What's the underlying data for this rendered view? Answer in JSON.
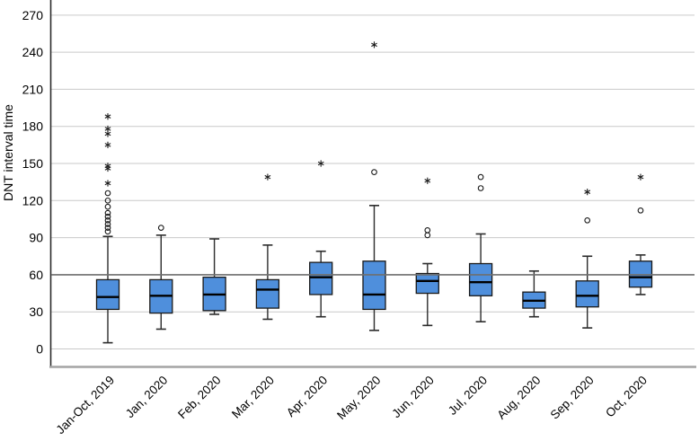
{
  "chart_data": {
    "type": "boxplot",
    "title": "",
    "ylabel": "DNT interval time",
    "xlabel": "",
    "yticks": [
      0,
      30,
      60,
      90,
      120,
      150,
      180,
      210,
      240,
      270
    ],
    "ylim": [
      -14,
      279
    ],
    "grid": "horizontal",
    "legend": "none",
    "reference_line": 60,
    "categories": [
      "Jan-Oct, 2019",
      "Jan, 2020",
      "Feb, 2020",
      "Mar, 2020",
      "Apr, 2020",
      "May, 2020",
      "Jun, 2020",
      "Jul, 2020",
      "Aug, 2020",
      "Sep, 2020",
      "Oct, 2020"
    ],
    "boxes": [
      {
        "category": "Jan-Oct, 2019",
        "whisker_low": 5,
        "q1": 32,
        "median": 42,
        "q3": 56,
        "whisker_high": 91,
        "outliers_circle": [
          95,
          98,
          101,
          104,
          107,
          110,
          115,
          120,
          126
        ],
        "outliers_star": [
          134,
          146,
          148,
          165,
          174,
          178,
          188
        ]
      },
      {
        "category": "Jan, 2020",
        "whisker_low": 16,
        "q1": 29,
        "median": 43,
        "q3": 56,
        "whisker_high": 92,
        "outliers_circle": [
          98
        ],
        "outliers_star": []
      },
      {
        "category": "Feb, 2020",
        "whisker_low": 28,
        "q1": 31,
        "median": 44,
        "q3": 58,
        "whisker_high": 89,
        "outliers_circle": [],
        "outliers_star": []
      },
      {
        "category": "Mar, 2020",
        "whisker_low": 24,
        "q1": 33,
        "median": 48,
        "q3": 56,
        "whisker_high": 84,
        "outliers_circle": [],
        "outliers_star": [
          139
        ]
      },
      {
        "category": "Apr, 2020",
        "whisker_low": 26,
        "q1": 44,
        "median": 58,
        "q3": 70,
        "whisker_high": 79,
        "outliers_circle": [],
        "outliers_star": [
          150
        ]
      },
      {
        "category": "May, 2020",
        "whisker_low": 15,
        "q1": 32,
        "median": 44,
        "q3": 71,
        "whisker_high": 116,
        "outliers_circle": [
          143
        ],
        "outliers_star": [
          246
        ]
      },
      {
        "category": "Jun, 2020",
        "whisker_low": 19,
        "q1": 45,
        "median": 55,
        "q3": 61,
        "whisker_high": 69,
        "outliers_circle": [
          92,
          96
        ],
        "outliers_star": [
          136
        ]
      },
      {
        "category": "Jul, 2020",
        "whisker_low": 22,
        "q1": 43,
        "median": 54,
        "q3": 69,
        "whisker_high": 93,
        "outliers_circle": [
          130,
          139
        ],
        "outliers_star": []
      },
      {
        "category": "Aug, 2020",
        "whisker_low": 26,
        "q1": 33,
        "median": 39,
        "q3": 46,
        "whisker_high": 63,
        "outliers_circle": [],
        "outliers_star": []
      },
      {
        "category": "Sep, 2020",
        "whisker_low": 17,
        "q1": 34,
        "median": 43,
        "q3": 55,
        "whisker_high": 75,
        "outliers_circle": [
          104
        ],
        "outliers_star": [
          127
        ]
      },
      {
        "category": "Oct, 2020",
        "whisker_low": 44,
        "q1": 50,
        "median": 58,
        "q3": 71,
        "whisker_high": 76,
        "outliers_circle": [
          112
        ],
        "outliers_star": [
          139
        ]
      }
    ],
    "colors": {
      "box_fill": "#4f8fdc",
      "box_border": "#1a1a1a",
      "median": "#000000",
      "whisker": "#2b2b2b",
      "gridline": "#c9c9c9",
      "reference_line": "#6f6f6f",
      "axis_left": "#2b2b2b",
      "axis_bottom": "#a3a3a3",
      "marker": "#1a1a1a",
      "text": "#000000"
    }
  }
}
